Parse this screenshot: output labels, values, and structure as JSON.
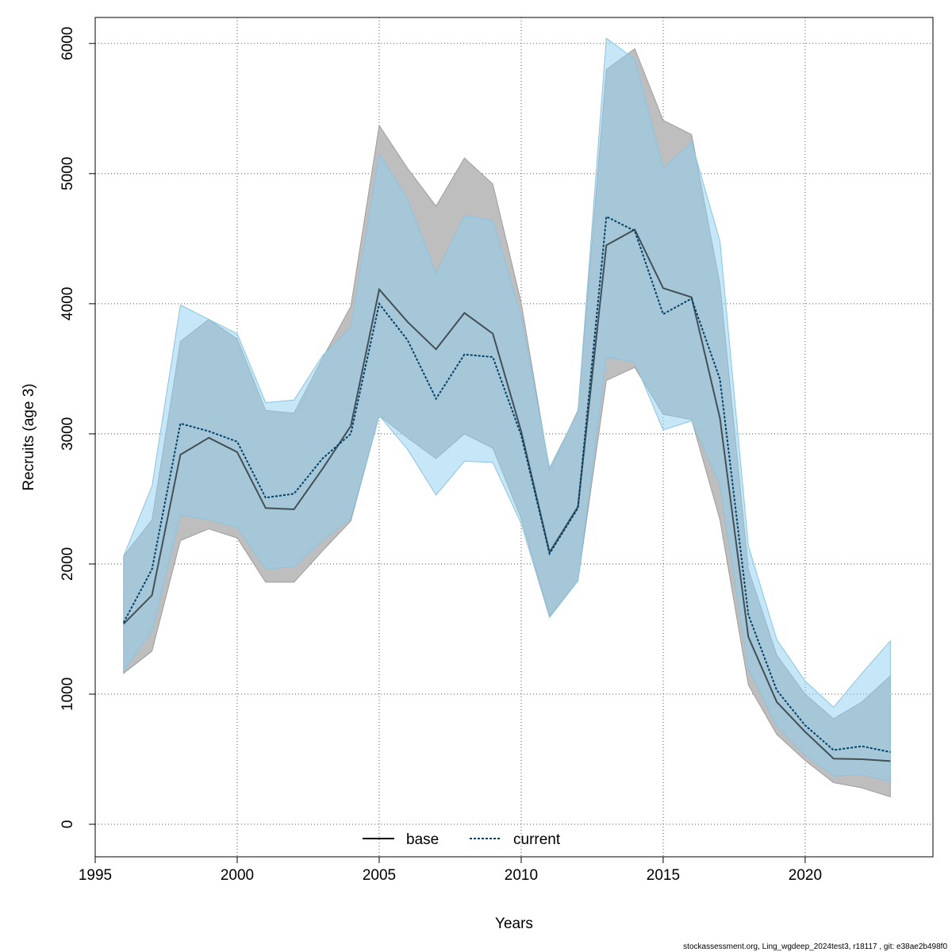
{
  "chart_data": {
    "type": "area",
    "xlabel": "Years",
    "ylabel": "Recruits (age 3)",
    "xlim": [
      1995,
      2024.5
    ],
    "ylim": [
      -250,
      6200
    ],
    "x_ticks": [
      1995,
      2000,
      2005,
      2010,
      2015,
      2020
    ],
    "y_ticks": [
      0,
      1000,
      2000,
      3000,
      4000,
      5000,
      6000
    ],
    "x_tick_labels": [
      "1995",
      "2000",
      "2005",
      "2010",
      "2015",
      "2020"
    ],
    "y_tick_labels": [
      "0",
      "1000",
      "2000",
      "3000",
      "4000",
      "5000",
      "6000"
    ],
    "grid": true,
    "legend_position": "bottom-center",
    "x": [
      1996,
      1997,
      1998,
      1999,
      2000,
      2001,
      2002,
      2003,
      2004,
      2005,
      2006,
      2007,
      2008,
      2009,
      2010,
      2011,
      2012,
      2013,
      2014,
      2015,
      2016,
      2017,
      2018,
      2019,
      2020,
      2021,
      2022,
      2023
    ],
    "series": [
      {
        "name": "base",
        "line_style": "solid",
        "color": "#000000",
        "band_color": "#bebebe",
        "values": [
          1540,
          1760,
          2840,
          2970,
          2860,
          2430,
          2420,
          2730,
          3060,
          4110,
          3860,
          3650,
          3930,
          3770,
          3020,
          2090,
          2440,
          4450,
          4570,
          4120,
          4050,
          3120,
          1440,
          940,
          710,
          505,
          500,
          485
        ],
        "lower": [
          1160,
          1330,
          2180,
          2270,
          2200,
          1860,
          1860,
          2100,
          2330,
          3140,
          2970,
          2810,
          3000,
          2890,
          2350,
          1600,
          1870,
          3410,
          3510,
          3150,
          3110,
          2340,
          1070,
          690,
          490,
          320,
          280,
          210
        ],
        "upper": [
          2060,
          2340,
          3710,
          3880,
          3730,
          3180,
          3160,
          3580,
          3980,
          5370,
          5040,
          4750,
          5120,
          4920,
          4010,
          2720,
          3180,
          5800,
          5960,
          5410,
          5300,
          4150,
          1960,
          1300,
          1000,
          810,
          940,
          1140
        ]
      },
      {
        "name": "current",
        "line_style": "dotted",
        "color": "#00426b",
        "band_color": "#8ccfef",
        "values": [
          1550,
          1960,
          3080,
          3020,
          2940,
          2510,
          2540,
          2810,
          3000,
          4000,
          3720,
          3270,
          3610,
          3590,
          2990,
          2080,
          2430,
          4670,
          4560,
          3920,
          4040,
          3420,
          1610,
          1030,
          760,
          570,
          600,
          555
        ],
        "lower": [
          1180,
          1490,
          2380,
          2340,
          2280,
          1960,
          1980,
          2180,
          2350,
          3140,
          2880,
          2530,
          2790,
          2780,
          2310,
          1590,
          1870,
          3590,
          3550,
          3030,
          3100,
          2600,
          1190,
          750,
          530,
          370,
          380,
          330
        ],
        "upper": [
          2060,
          2600,
          3990,
          3880,
          3770,
          3240,
          3260,
          3600,
          3820,
          5150,
          4800,
          4230,
          4680,
          4640,
          3900,
          2740,
          3170,
          6040,
          5880,
          5040,
          5240,
          4480,
          2140,
          1420,
          1100,
          900,
          1160,
          1410
        ]
      }
    ],
    "footer": "stockassessment.org, Ling_wgdeep_2024test3, r18117 , git: e38ae2b498f0"
  }
}
